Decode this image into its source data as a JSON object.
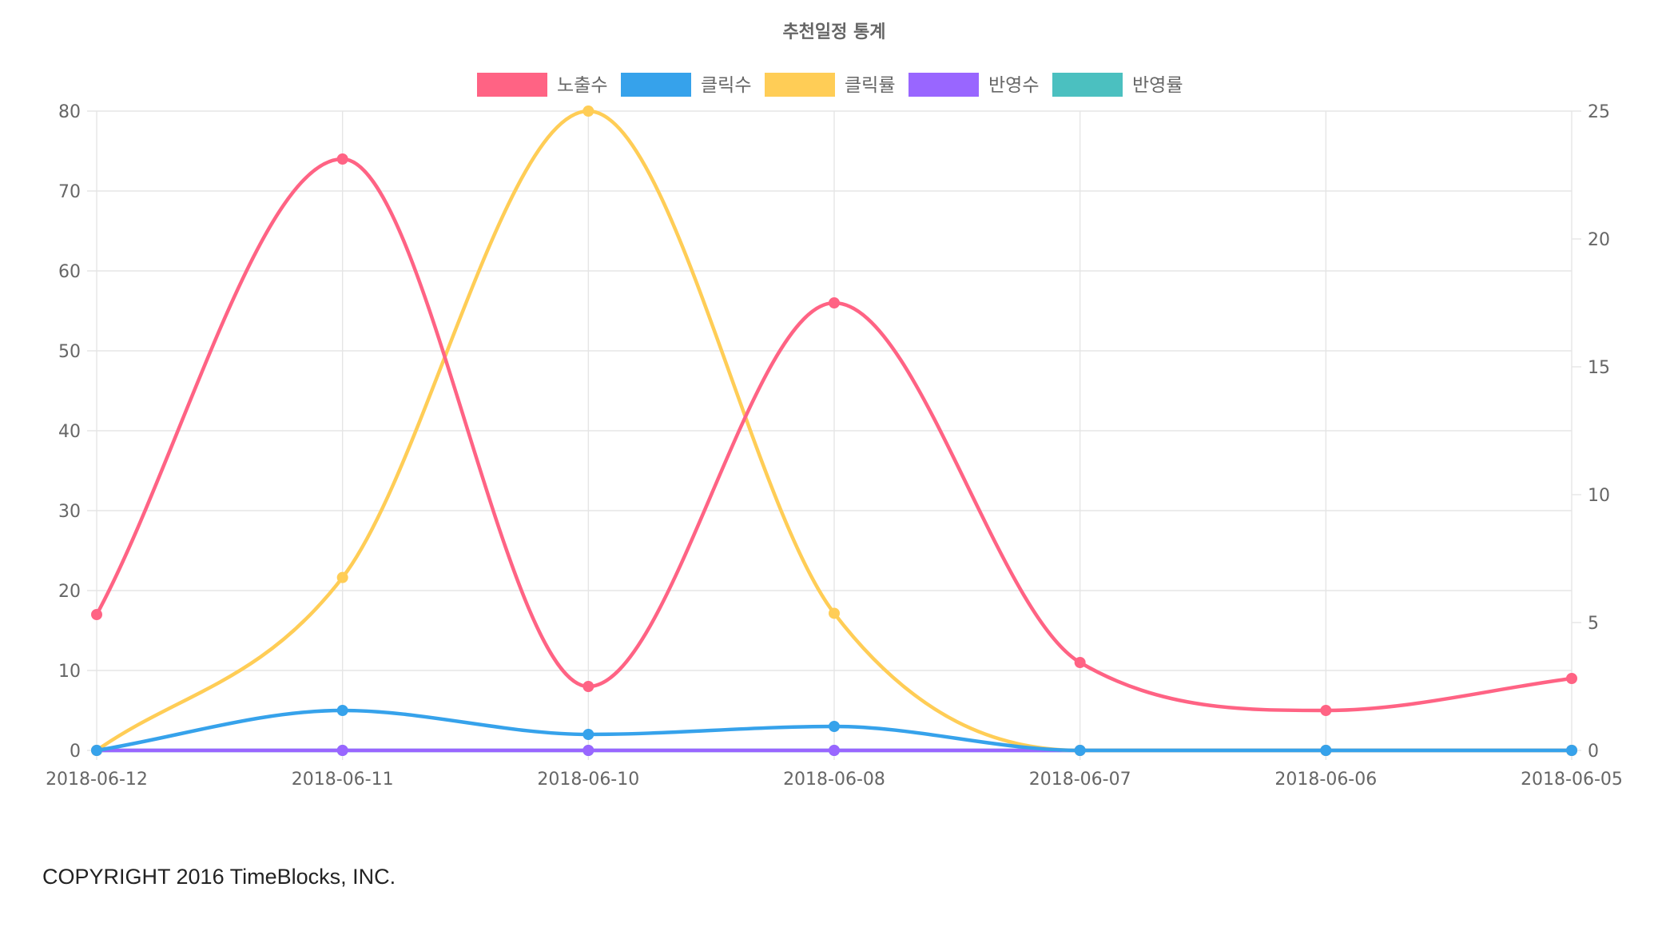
{
  "chart_data": {
    "type": "line",
    "title": "추천일정 통계",
    "categories": [
      "2018-06-12",
      "2018-06-11",
      "2018-06-10",
      "2018-06-08",
      "2018-06-07",
      "2018-06-06",
      "2018-06-05"
    ],
    "y_left": {
      "min": 0,
      "max": 80,
      "step": 10
    },
    "y_right": {
      "min": 0,
      "max": 25,
      "step": 5
    },
    "legend_position": "top-center",
    "grid": true,
    "series": [
      {
        "name": "노출수",
        "color": "#ff6384",
        "axis": "left",
        "values": [
          17,
          74,
          8,
          56,
          11,
          5,
          9
        ]
      },
      {
        "name": "클릭수",
        "color": "#36a2eb",
        "axis": "left",
        "values": [
          0,
          5,
          2,
          3,
          0,
          0,
          0
        ]
      },
      {
        "name": "클릭률",
        "color": "#ffcd56",
        "axis": "right",
        "values": [
          0,
          6.76,
          25,
          5.36,
          0,
          0,
          0
        ]
      },
      {
        "name": "반영수",
        "color": "#9966ff",
        "axis": "left",
        "values": [
          0,
          0,
          0,
          0,
          0,
          0,
          0
        ]
      },
      {
        "name": "반영률",
        "color": "#4bc0c0",
        "axis": "right",
        "values": [
          0,
          0,
          0,
          0,
          0,
          0,
          0
        ]
      }
    ]
  },
  "footer": {
    "copyright": "COPYRIGHT 2016 TimeBlocks, INC."
  }
}
